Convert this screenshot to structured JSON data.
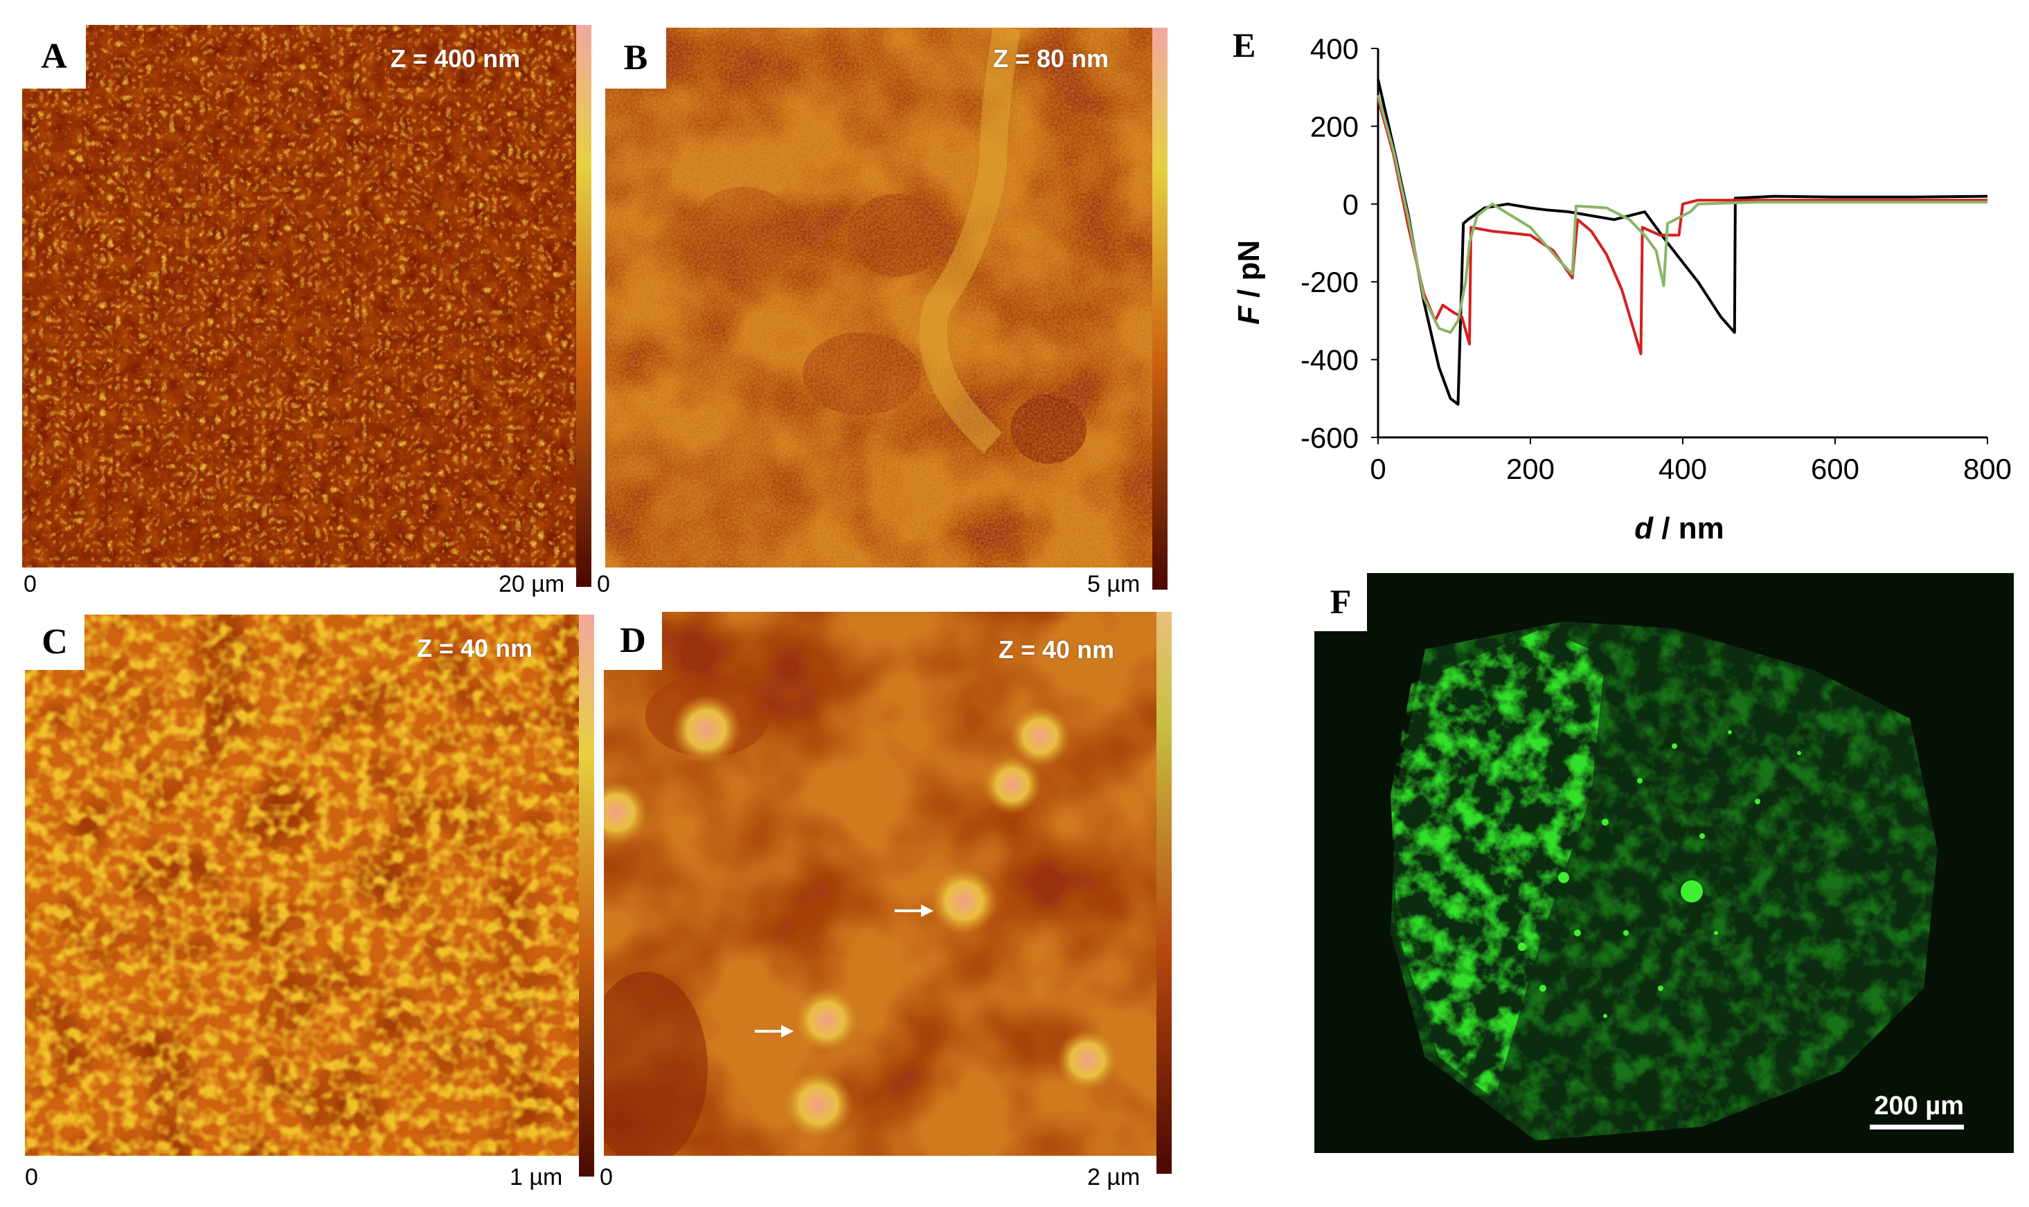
{
  "panels": {
    "A": {
      "letter": "A",
      "z": "Z = 400 nm",
      "scale_zero": "0",
      "scale_end": "20 µm"
    },
    "B": {
      "letter": "B",
      "z": "Z = 80 nm",
      "scale_zero": "0",
      "scale_end": "5 µm"
    },
    "C": {
      "letter": "C",
      "z": "Z = 40 nm",
      "scale_zero": "0",
      "scale_end": "1 µm"
    },
    "D": {
      "letter": "D",
      "z": "Z = 40 nm",
      "scale_zero": "0",
      "scale_end": "2 µm"
    },
    "E": {
      "letter": "E"
    },
    "F": {
      "letter": "F",
      "scale_bar": "200 µm"
    }
  },
  "colors": {
    "afm_dark": "#7a1a00",
    "afm_mid": "#c85a00",
    "afm_light": "#e7b400",
    "curve_black": "#000000",
    "curve_red": "#d42020",
    "curve_green": "#8ab56a",
    "fluor_green": "#33e02a"
  },
  "chart_data": {
    "type": "line",
    "xlabel": "d / nm",
    "ylabel": "F / pN",
    "xlim": [
      0,
      800
    ],
    "ylim": [
      -600,
      400
    ],
    "xticks": [
      0,
      200,
      400,
      600,
      800
    ],
    "yticks": [
      400,
      200,
      0,
      -200,
      -400,
      -600
    ],
    "grid": false,
    "series": [
      {
        "color": "#000000",
        "x": [
          0,
          20,
          40,
          60,
          80,
          95,
          105,
          112,
          118,
          140,
          170,
          200,
          220,
          250,
          280,
          310,
          330,
          350,
          380,
          420,
          450,
          468,
          469,
          520,
          600,
          700,
          800
        ],
        "y": [
          320,
          150,
          -30,
          -250,
          -420,
          -500,
          -515,
          -50,
          -40,
          -10,
          0,
          -10,
          -15,
          -20,
          -30,
          -40,
          -30,
          -20,
          -100,
          -200,
          -290,
          -330,
          15,
          20,
          18,
          18,
          20
        ]
      },
      {
        "color": "#d42020",
        "x": [
          0,
          20,
          40,
          60,
          75,
          85,
          100,
          110,
          120,
          122,
          150,
          200,
          230,
          255,
          262,
          280,
          300,
          320,
          345,
          347,
          370,
          395,
          400,
          420,
          500,
          600,
          700,
          800
        ],
        "y": [
          270,
          130,
          -60,
          -230,
          -300,
          -260,
          -280,
          -290,
          -360,
          -60,
          -70,
          -80,
          -120,
          -190,
          -40,
          -70,
          -130,
          -220,
          -385,
          -60,
          -80,
          -80,
          0,
          10,
          10,
          10,
          10,
          10
        ]
      },
      {
        "color": "#8ab56a",
        "x": [
          0,
          20,
          40,
          60,
          80,
          95,
          105,
          115,
          120,
          130,
          150,
          200,
          240,
          255,
          260,
          300,
          330,
          350,
          365,
          375,
          380,
          410,
          420,
          500,
          600,
          700,
          800
        ],
        "y": [
          280,
          140,
          -40,
          -240,
          -320,
          -330,
          -300,
          -200,
          -100,
          -30,
          0,
          -60,
          -150,
          -180,
          -5,
          -10,
          -40,
          -80,
          -120,
          -210,
          -50,
          -20,
          0,
          5,
          5,
          5,
          5
        ]
      }
    ]
  }
}
